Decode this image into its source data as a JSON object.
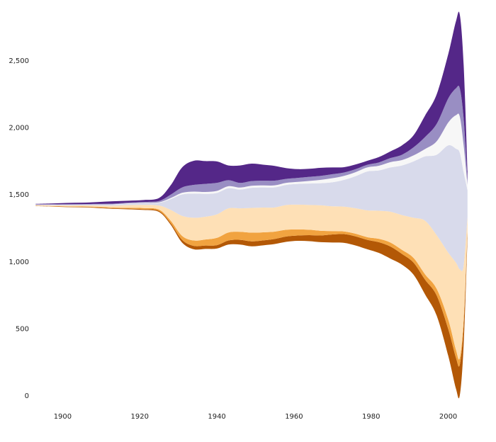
{
  "chart_data": {
    "type": "streamgraph",
    "x": [
      1893,
      1897,
      1901,
      1905,
      1909,
      1913,
      1917,
      1921,
      1925,
      1928,
      1931,
      1934,
      1937,
      1940,
      1943,
      1946,
      1949,
      1952,
      1955,
      1958,
      1961,
      1964,
      1967,
      1970,
      1973,
      1976,
      1979,
      1982,
      1985,
      1988,
      1991,
      1994,
      1997,
      2000,
      2002,
      2003,
      2004,
      2005
    ],
    "series": [
      {
        "color": "#b35806",
        "values": [
          2,
          2,
          3,
          3,
          4,
          4,
          5,
          6,
          8,
          12,
          20,
          25,
          25,
          25,
          30,
          35,
          37,
          37,
          38,
          40,
          40,
          45,
          50,
          60,
          65,
          68,
          70,
          80,
          90,
          80,
          90,
          110,
          150,
          200,
          230,
          230,
          150,
          40
        ]
      },
      {
        "color": "#f1a340",
        "values": [
          2,
          2,
          3,
          3,
          4,
          5,
          6,
          8,
          10,
          18,
          30,
          40,
          45,
          55,
          60,
          60,
          65,
          60,
          55,
          50,
          45,
          40,
          35,
          25,
          20,
          20,
          20,
          25,
          30,
          30,
          35,
          40,
          50,
          70,
          60,
          50,
          40,
          20
        ]
      },
      {
        "color": "#fee0b6",
        "values": [
          3,
          5,
          6,
          8,
          10,
          14,
          20,
          24,
          30,
          80,
          150,
          170,
          170,
          175,
          180,
          175,
          185,
          185,
          180,
          185,
          185,
          185,
          190,
          185,
          185,
          190,
          200,
          210,
          230,
          260,
          300,
          400,
          400,
          500,
          650,
          660,
          400,
          100
        ]
      },
      {
        "color": "#d8daeb",
        "values": [
          4,
          4,
          5,
          5,
          6,
          8,
          10,
          12,
          20,
          80,
          160,
          180,
          170,
          160,
          150,
          140,
          150,
          150,
          150,
          150,
          155,
          160,
          165,
          180,
          200,
          240,
          290,
          300,
          330,
          370,
          420,
          480,
          600,
          800,
          850,
          870,
          700,
          200
        ]
      },
      {
        "color": "#f7f7f7",
        "values": [
          1,
          1,
          1,
          1,
          2,
          2,
          3,
          3,
          4,
          8,
          12,
          15,
          15,
          15,
          15,
          15,
          15,
          15,
          15,
          15,
          15,
          20,
          25,
          30,
          30,
          30,
          30,
          35,
          40,
          40,
          45,
          55,
          100,
          170,
          250,
          270,
          200,
          40
        ]
      },
      {
        "color": "#998ec3",
        "values": [
          2,
          3,
          3,
          4,
          4,
          5,
          6,
          7,
          10,
          25,
          40,
          50,
          60,
          60,
          45,
          35,
          35,
          35,
          35,
          30,
          30,
          30,
          30,
          30,
          25,
          22,
          20,
          25,
          30,
          40,
          60,
          90,
          130,
          180,
          200,
          210,
          200,
          40
        ]
      },
      {
        "color": "#542788",
        "values": [
          3,
          6,
          10,
          10,
          14,
          18,
          14,
          14,
          22,
          70,
          150,
          180,
          170,
          160,
          110,
          130,
          130,
          120,
          110,
          80,
          65,
          60,
          60,
          50,
          40,
          35,
          30,
          40,
          50,
          70,
          90,
          160,
          220,
          330,
          500,
          550,
          400,
          60
        ]
      }
    ],
    "xlim": [
      1890,
      2010
    ],
    "xticks": [
      1900,
      1920,
      1940,
      1960,
      1980,
      2000
    ],
    "ylim": [
      -50,
      2900
    ],
    "yticks": [
      0,
      500,
      {
        "value": 1000,
        "label": "1,000"
      },
      {
        "value": 1500,
        "label": "1,500"
      },
      {
        "value": 2000,
        "label": "2,000"
      },
      {
        "value": 2500,
        "label": "2,500"
      }
    ]
  }
}
